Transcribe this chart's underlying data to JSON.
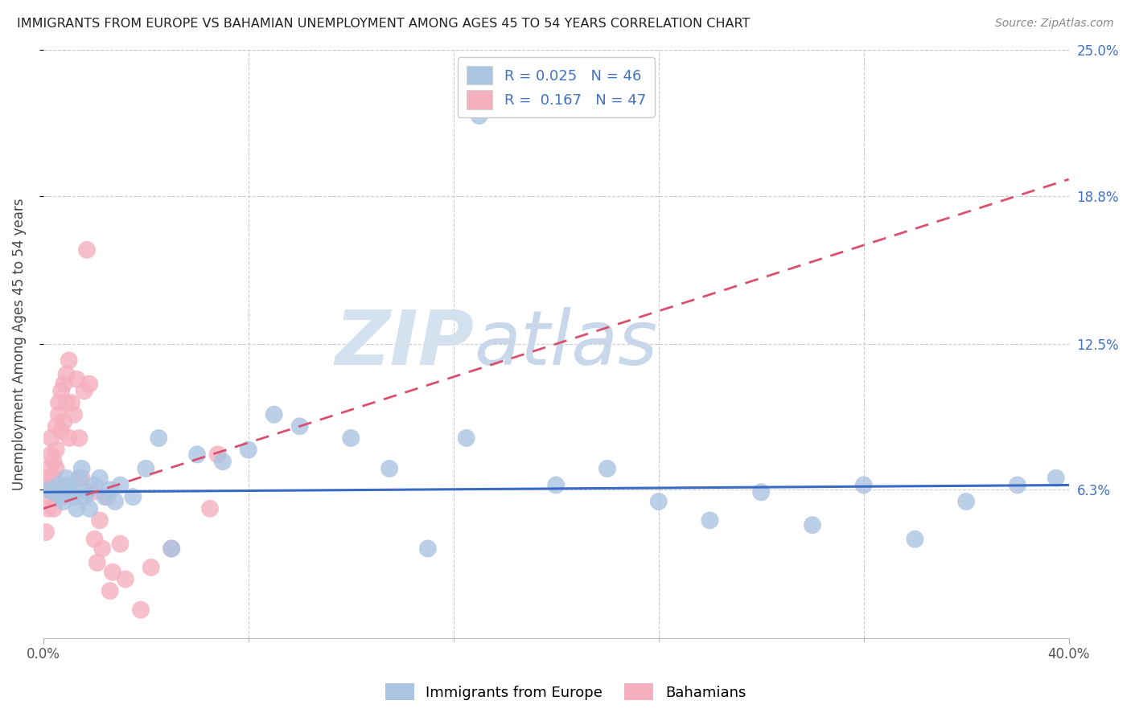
{
  "title": "IMMIGRANTS FROM EUROPE VS BAHAMIAN UNEMPLOYMENT AMONG AGES 45 TO 54 YEARS CORRELATION CHART",
  "source": "Source: ZipAtlas.com",
  "ylabel": "Unemployment Among Ages 45 to 54 years",
  "xlim": [
    0.0,
    0.4
  ],
  "ylim": [
    0.0,
    0.25
  ],
  "ytick_right_labels": [
    "25.0%",
    "18.8%",
    "12.5%",
    "6.3%"
  ],
  "ytick_right_vals": [
    0.25,
    0.188,
    0.125,
    0.063
  ],
  "blue_R": 0.025,
  "blue_N": 46,
  "pink_R": 0.167,
  "pink_N": 47,
  "blue_color": "#aac4e2",
  "blue_line_color": "#3a6bc4",
  "pink_color": "#f5b0c0",
  "pink_line_color": "#d95070",
  "watermark_zip": "ZIP",
  "watermark_atlas": "atlas",
  "watermark_color": "#d4e2f0",
  "blue_trend_x": [
    0.0,
    0.4
  ],
  "blue_trend_y": [
    0.062,
    0.065
  ],
  "pink_trend_x": [
    0.0,
    0.4
  ],
  "pink_trend_y": [
    0.055,
    0.195
  ],
  "blue_scatter_x": [
    0.002,
    0.004,
    0.006,
    0.007,
    0.008,
    0.009,
    0.01,
    0.011,
    0.012,
    0.013,
    0.014,
    0.015,
    0.016,
    0.017,
    0.018,
    0.02,
    0.022,
    0.024,
    0.026,
    0.028,
    0.03,
    0.035,
    0.04,
    0.045,
    0.05,
    0.06,
    0.07,
    0.08,
    0.09,
    0.1,
    0.12,
    0.135,
    0.15,
    0.165,
    0.17,
    0.2,
    0.22,
    0.24,
    0.26,
    0.28,
    0.3,
    0.32,
    0.34,
    0.36,
    0.38,
    0.395
  ],
  "blue_scatter_y": [
    0.063,
    0.062,
    0.065,
    0.06,
    0.058,
    0.068,
    0.065,
    0.063,
    0.06,
    0.055,
    0.068,
    0.072,
    0.06,
    0.062,
    0.055,
    0.065,
    0.068,
    0.06,
    0.063,
    0.058,
    0.065,
    0.06,
    0.072,
    0.085,
    0.038,
    0.078,
    0.075,
    0.08,
    0.095,
    0.09,
    0.085,
    0.072,
    0.038,
    0.085,
    0.222,
    0.065,
    0.072,
    0.058,
    0.05,
    0.062,
    0.048,
    0.065,
    0.042,
    0.058,
    0.065,
    0.068
  ],
  "pink_scatter_x": [
    0.001,
    0.001,
    0.002,
    0.002,
    0.002,
    0.003,
    0.003,
    0.003,
    0.004,
    0.004,
    0.004,
    0.005,
    0.005,
    0.005,
    0.006,
    0.006,
    0.007,
    0.007,
    0.008,
    0.008,
    0.009,
    0.009,
    0.01,
    0.01,
    0.011,
    0.012,
    0.013,
    0.014,
    0.015,
    0.016,
    0.017,
    0.018,
    0.019,
    0.02,
    0.021,
    0.022,
    0.023,
    0.025,
    0.026,
    0.027,
    0.03,
    0.032,
    0.038,
    0.042,
    0.05,
    0.065,
    0.068
  ],
  "pink_scatter_y": [
    0.065,
    0.045,
    0.068,
    0.055,
    0.072,
    0.078,
    0.085,
    0.06,
    0.055,
    0.068,
    0.075,
    0.08,
    0.072,
    0.09,
    0.095,
    0.1,
    0.088,
    0.105,
    0.092,
    0.108,
    0.1,
    0.112,
    0.118,
    0.085,
    0.1,
    0.095,
    0.11,
    0.085,
    0.068,
    0.105,
    0.165,
    0.108,
    0.062,
    0.042,
    0.032,
    0.05,
    0.038,
    0.06,
    0.02,
    0.028,
    0.04,
    0.025,
    0.012,
    0.03,
    0.038,
    0.055,
    0.078
  ]
}
